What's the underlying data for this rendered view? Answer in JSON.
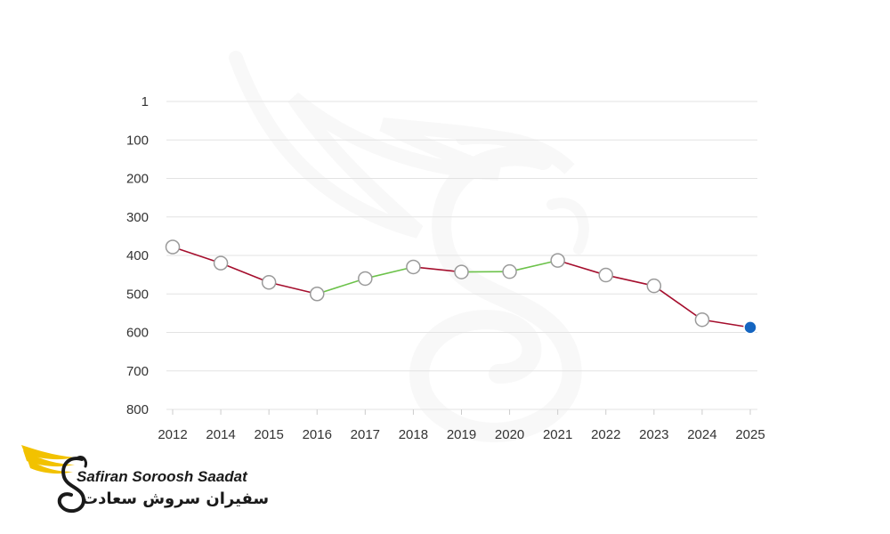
{
  "chart_data": {
    "type": "line",
    "title": "",
    "xlabel": "",
    "ylabel": "",
    "categories": [
      "2012",
      "2014",
      "2015",
      "2016",
      "2017",
      "2018",
      "2019",
      "2020",
      "2021",
      "2022",
      "2023",
      "2024",
      "2025"
    ],
    "values": [
      378,
      420,
      470,
      500,
      460,
      430,
      443,
      442,
      413,
      451,
      479,
      567,
      587
    ],
    "segment_trend": [
      "down",
      "down",
      "down",
      "up",
      "up",
      "down",
      "up",
      "up",
      "down",
      "down",
      "down",
      "down"
    ],
    "y_ticks": [
      "1",
      "100",
      "200",
      "300",
      "400",
      "500",
      "600",
      "700",
      "800"
    ],
    "ylim": [
      1,
      800
    ],
    "y_inverted": true,
    "grid": true,
    "legend": "none",
    "colors": {
      "worsening": "#a50e2d",
      "improving": "#6cc24a",
      "marker_fill": "#ffffff",
      "marker_stroke": "#9a9a9a",
      "current_marker": "#1565c0",
      "grid": "#e3e3e3"
    }
  },
  "logo": {
    "name_en": "Safiran Soroosh Saadat",
    "name_fa": "سفیران سروش سعادت",
    "icon": "winged-s-logo-icon",
    "colors": {
      "wing": "#f2c200",
      "ink": "#1a1a1a"
    }
  }
}
